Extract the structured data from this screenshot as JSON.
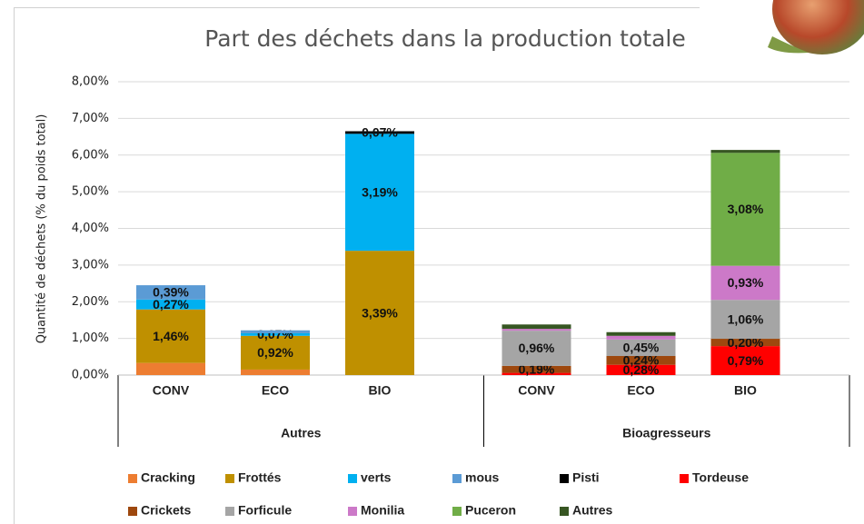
{
  "chart_data": {
    "type": "stacked-bar",
    "title": "Part des déchets dans la production totale",
    "y_label": "Quantité de déchets (% du poids total)",
    "groups": [
      {
        "name": "Autres",
        "categories": [
          "CONV",
          "ECO",
          "BIO"
        ]
      },
      {
        "name": "Bioagresseurs",
        "categories": [
          "CONV",
          "ECO",
          "BIO"
        ]
      }
    ],
    "ylim": [
      0,
      8
    ],
    "yticks": [
      {
        "value": 0,
        "label": "0,00%"
      },
      {
        "value": 1,
        "label": "1,00%"
      },
      {
        "value": 2,
        "label": "2,00%"
      },
      {
        "value": 3,
        "label": "3,00%"
      },
      {
        "value": 4,
        "label": "4,00%"
      },
      {
        "value": 5,
        "label": "5,00%"
      },
      {
        "value": 6,
        "label": "6,00%"
      },
      {
        "value": 7,
        "label": "7,00%"
      },
      {
        "value": 8,
        "label": "8,00%"
      }
    ],
    "grid": true,
    "legend": "bottom",
    "series": [
      {
        "name": "Cracking",
        "color": "#ed7d31",
        "values": [
          0.33,
          0.15,
          null,
          null,
          null,
          null
        ],
        "value_labels": [
          null,
          null,
          null,
          null,
          null,
          null
        ]
      },
      {
        "name": "Frottés",
        "color": "#bf9000",
        "values": [
          1.46,
          0.92,
          3.39,
          null,
          null,
          null
        ],
        "value_labels": [
          "1,46%",
          "0,92%",
          "3,39%",
          null,
          null,
          null
        ]
      },
      {
        "name": "verts",
        "color": "#00b0f0",
        "values": [
          0.27,
          0.07,
          3.19,
          null,
          null,
          null
        ],
        "value_labels": [
          "0,27%",
          "0,07%",
          "3,19%",
          null,
          null,
          null
        ]
      },
      {
        "name": "mous",
        "color": "#5b9bd5",
        "values": [
          0.39,
          0.08,
          null,
          null,
          null,
          null
        ],
        "value_labels": [
          "0,39%",
          null,
          null,
          null,
          null,
          null
        ]
      },
      {
        "name": "Pisti",
        "color": "#000000",
        "values": [
          null,
          null,
          0.07,
          null,
          null,
          null
        ],
        "value_labels": [
          null,
          null,
          "0,07%",
          null,
          null,
          null
        ]
      },
      {
        "name": "Tordeuse",
        "color": "#ff0000",
        "values": [
          null,
          null,
          null,
          0.06,
          0.28,
          0.79
        ],
        "value_labels": [
          null,
          null,
          null,
          null,
          "0,28%",
          "0,79%"
        ]
      },
      {
        "name": "Crickets",
        "color": "#9e480e",
        "values": [
          null,
          null,
          null,
          0.19,
          0.24,
          0.2
        ],
        "value_labels": [
          null,
          null,
          null,
          "0,19%",
          "0,24%",
          "0,20%"
        ]
      },
      {
        "name": "Forficule",
        "color": "#a5a5a5",
        "values": [
          null,
          null,
          null,
          0.96,
          0.45,
          1.06
        ],
        "value_labels": [
          null,
          null,
          null,
          "0,96%",
          "0,45%",
          "1,06%"
        ]
      },
      {
        "name": "Monilia",
        "color": "#cc79c8",
        "values": [
          null,
          null,
          null,
          0.05,
          0.1,
          0.93
        ],
        "value_labels": [
          null,
          null,
          null,
          null,
          null,
          "0,93%"
        ]
      },
      {
        "name": "Puceron",
        "color": "#70ad47",
        "values": [
          null,
          null,
          null,
          null,
          null,
          3.08
        ],
        "value_labels": [
          null,
          null,
          null,
          null,
          null,
          "3,08%"
        ]
      },
      {
        "name": "Autres",
        "color": "#375623",
        "values": [
          null,
          null,
          null,
          0.12,
          0.1,
          0.08
        ],
        "value_labels": [
          null,
          null,
          null,
          null,
          null,
          null
        ]
      }
    ]
  }
}
